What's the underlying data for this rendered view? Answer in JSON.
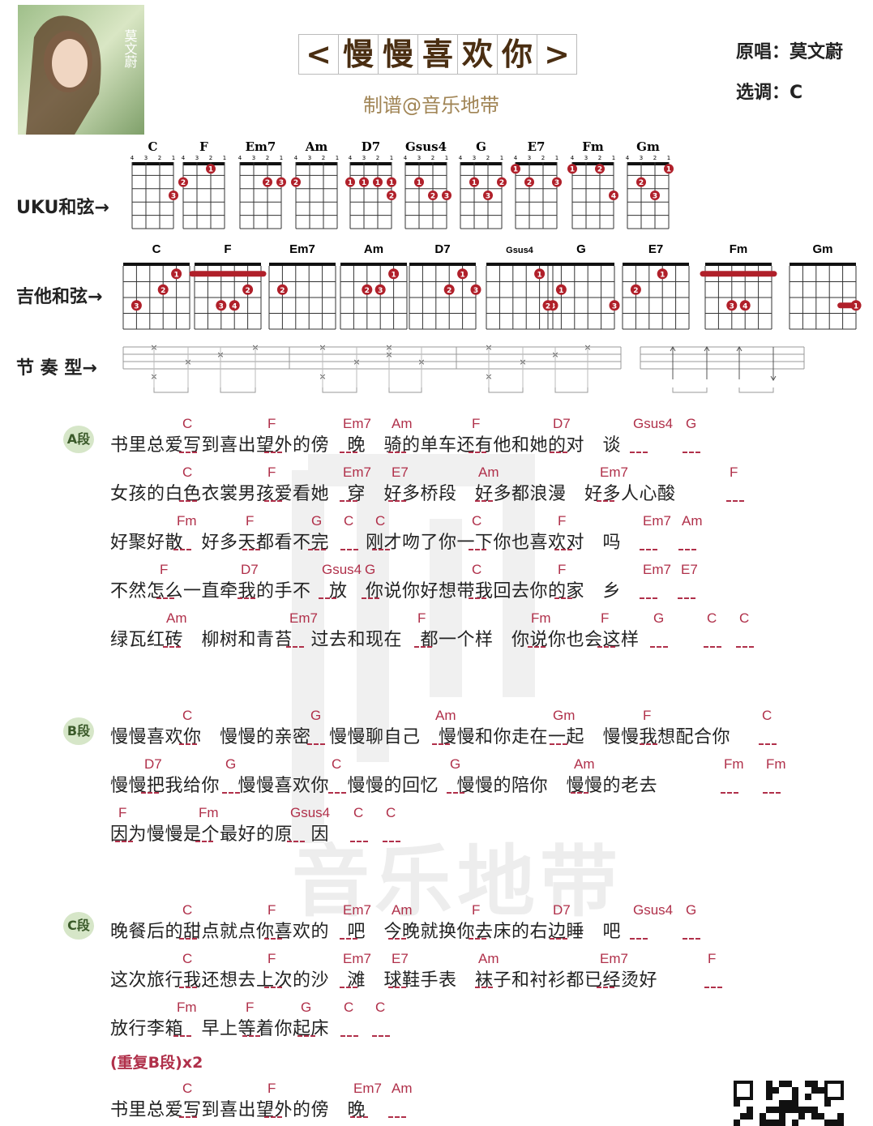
{
  "header": {
    "title_chars": [
      "<",
      "慢",
      "慢",
      "喜",
      "欢",
      "你",
      ">"
    ],
    "arranger": "制谱@音乐地带",
    "singer": "原唱：莫文蔚",
    "key": "选调：C",
    "cover_text": "莫文蔚"
  },
  "labels": {
    "uku": "UKU和弦→",
    "guitar": "吉他和弦→",
    "rhythm": "节 奏 型→"
  },
  "uku_chords": [
    "C",
    "F",
    "Em7",
    "Am",
    "D7",
    "Gsus4",
    "G",
    "E7",
    "Fm",
    "Gm"
  ],
  "guitar_chords": [
    "C",
    "F",
    "Em7",
    "Am",
    "D7",
    "Gsus4",
    "G",
    "E7",
    "Fm",
    "Gm"
  ],
  "sections": {
    "a": "A段",
    "b": "B段",
    "c": "C段"
  },
  "lyrics": [
    {
      "text": "书里总爱写到喜出望外的傍　晚　骑的单车还有他和她的对　谈",
      "chords": [
        "C",
        "F",
        "Em7",
        "Am",
        "F",
        "D7",
        "Gsus4",
        "G"
      ]
    },
    {
      "text": "女孩的白色衣裳男孩爱看她　穿　好多桥段　好多都浪漫　好多人心酸",
      "chords": [
        "C",
        "F",
        "Em7",
        "E7",
        "Am",
        "Em7",
        "F"
      ]
    },
    {
      "text": "好聚好散　好多天都看不完　　刚才吻了你一下你也喜欢对　吗",
      "chords": [
        "Fm",
        "F",
        "G",
        "C",
        "C",
        "C",
        "F",
        "Em7",
        "Am"
      ]
    },
    {
      "text": "不然怎么一直牵我的手不　放　你说你好想带我回去你的家　乡",
      "chords": [
        "F",
        "D7",
        "Gsus4",
        "G",
        "C",
        "F",
        "Em7",
        "E7"
      ]
    },
    {
      "text": "绿瓦红砖　柳树和青苔　过去和现在　都一个样　你说你也会这样",
      "chords": [
        "Am",
        "Em7",
        "F",
        "Fm",
        "F",
        "G",
        "C",
        "C"
      ]
    },
    {
      "text": "慢慢喜欢你　慢慢的亲密　慢慢聊自己　慢慢和你走在一起　慢慢我想配合你",
      "chords": [
        "C",
        "G",
        "Am",
        "Gm",
        "F",
        "C"
      ]
    },
    {
      "text": "慢慢把我给你　慢慢喜欢你　慢慢的回忆　慢慢的陪你　慢慢的老去",
      "chords": [
        "D7",
        "G",
        "C",
        "G",
        "Am",
        "Fm",
        "Fm"
      ]
    },
    {
      "text": "因为慢慢是个最好的原　因",
      "chords": [
        "F",
        "Fm",
        "Gsus4",
        "C",
        "C"
      ]
    },
    {
      "text": "晚餐后的甜点就点你喜欢的　吧　今晚就换你去床的右边睡　吧",
      "chords": [
        "C",
        "F",
        "Em7",
        "Am",
        "F",
        "D7",
        "Gsus4",
        "G"
      ]
    },
    {
      "text": "这次旅行我还想去上次的沙　滩　球鞋手表　袜子和衬衫都已经烫好",
      "chords": [
        "C",
        "F",
        "Em7",
        "E7",
        "Am",
        "Em7",
        "F"
      ]
    },
    {
      "text": "放行李箱　早上等着你起床",
      "chords": [
        "Fm",
        "F",
        "G",
        "C",
        "C"
      ]
    },
    {
      "text": "书里总爱写到喜出望外的傍　晚",
      "chords": [
        "C",
        "F",
        "Em7",
        "Am"
      ]
    }
  ],
  "repeat": "(重复B段)x2",
  "watermark": "音乐地带",
  "colors": {
    "chord": "#b0304a",
    "title": "#4a2e12",
    "arranger": "#a08454",
    "dot": "#b0202a"
  }
}
